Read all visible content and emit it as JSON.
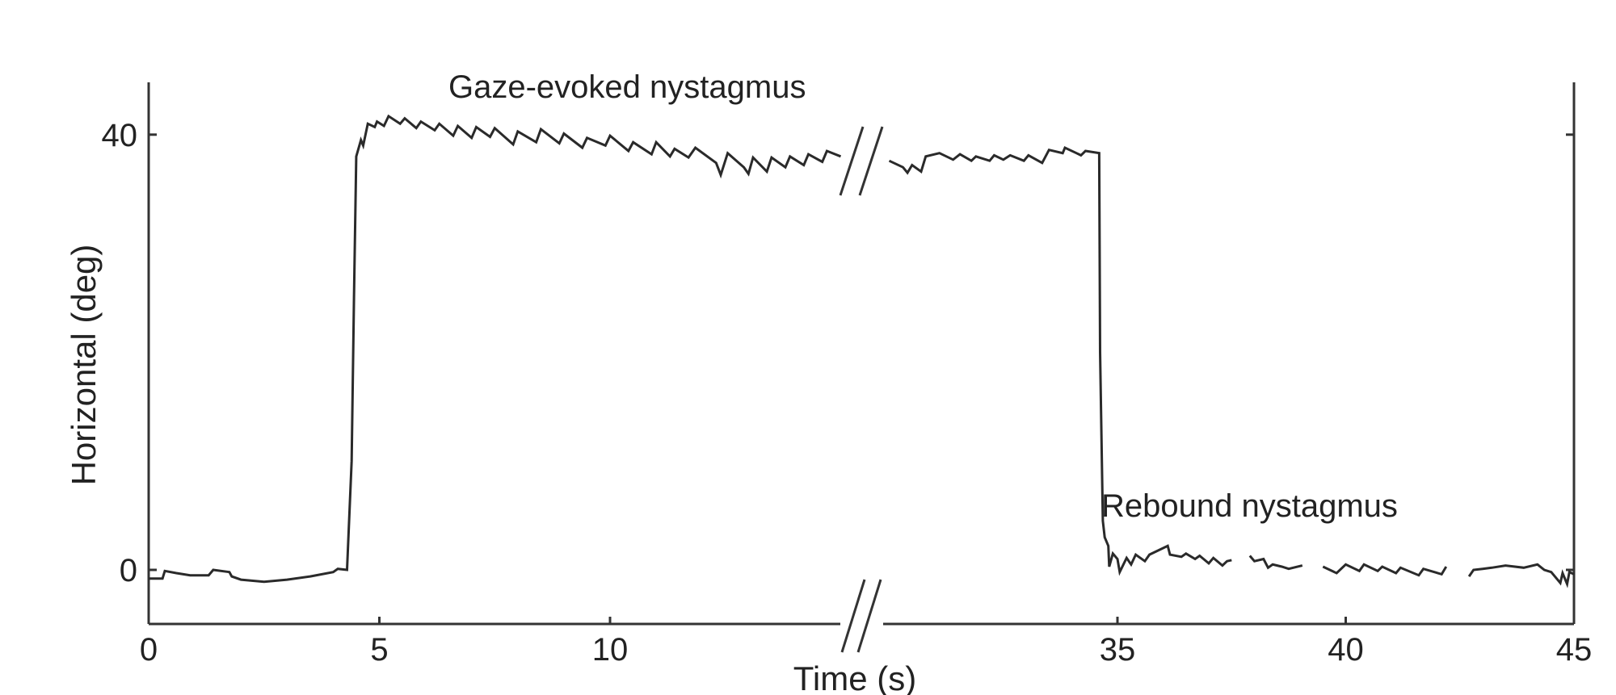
{
  "chart_data": {
    "type": "line",
    "title": "",
    "xlabel": "Time (s)",
    "ylabel": "Horizontal (deg)",
    "x_ticks": [
      "0",
      "5",
      "10",
      "35",
      "40",
      "45"
    ],
    "y_ticks": [
      "0",
      "40"
    ],
    "x_break": "axis break between 15 and 30 s",
    "xlim_segments": [
      [
        0,
        15
      ],
      [
        30,
        45
      ]
    ],
    "ylim": [
      -5,
      45
    ],
    "grid": false,
    "annotations": [
      "Gaze-evoked nystagmus",
      "Rebound nystagmus"
    ],
    "series": [
      {
        "segments": [
          [
            [
              0.0,
              -0.8
            ],
            [
              0.3,
              -0.8
            ],
            [
              0.35,
              -0.1
            ],
            [
              0.6,
              -0.3
            ],
            [
              0.9,
              -0.5
            ],
            [
              1.3,
              -0.5
            ],
            [
              1.4,
              0.0
            ],
            [
              1.75,
              -0.2
            ],
            [
              1.8,
              -0.6
            ],
            [
              2.0,
              -0.9
            ],
            [
              2.5,
              -1.1
            ],
            [
              3.0,
              -0.9
            ],
            [
              3.5,
              -0.6
            ],
            [
              4.0,
              -0.2
            ],
            [
              4.1,
              0.1
            ],
            [
              4.3,
              0.0
            ],
            [
              4.4,
              10.0
            ],
            [
              4.45,
              25.0
            ],
            [
              4.5,
              38.0
            ],
            [
              4.6,
              39.5
            ],
            [
              4.65,
              39.0
            ],
            [
              4.75,
              41.0
            ],
            [
              4.9,
              40.7
            ],
            [
              4.95,
              41.2
            ],
            [
              5.1,
              40.8
            ],
            [
              5.2,
              41.7
            ],
            [
              5.45,
              41.0
            ],
            [
              5.55,
              41.5
            ],
            [
              5.8,
              40.6
            ],
            [
              5.9,
              41.2
            ],
            [
              6.2,
              40.4
            ],
            [
              6.3,
              41.0
            ],
            [
              6.6,
              39.9
            ],
            [
              6.7,
              40.8
            ],
            [
              7.0,
              39.7
            ],
            [
              7.1,
              40.7
            ],
            [
              7.4,
              39.8
            ],
            [
              7.5,
              40.6
            ],
            [
              7.9,
              39.1
            ],
            [
              8.0,
              40.3
            ],
            [
              8.4,
              39.3
            ],
            [
              8.5,
              40.5
            ],
            [
              8.9,
              39.2
            ],
            [
              9.0,
              40.1
            ],
            [
              9.4,
              38.8
            ],
            [
              9.5,
              39.7
            ],
            [
              9.9,
              39.0
            ],
            [
              10.0,
              39.9
            ],
            [
              10.4,
              38.5
            ],
            [
              10.5,
              39.3
            ],
            [
              10.9,
              38.2
            ],
            [
              11.0,
              39.3
            ],
            [
              11.3,
              38.0
            ],
            [
              11.4,
              38.7
            ],
            [
              11.7,
              37.9
            ],
            [
              11.85,
              38.8
            ],
            [
              12.3,
              37.4
            ],
            [
              12.4,
              36.3
            ],
            [
              12.55,
              38.3
            ],
            [
              12.9,
              37.0
            ],
            [
              13.0,
              36.4
            ],
            [
              13.1,
              37.9
            ],
            [
              13.4,
              36.6
            ],
            [
              13.5,
              37.9
            ],
            [
              13.8,
              37.0
            ],
            [
              13.9,
              38.0
            ],
            [
              14.2,
              37.2
            ],
            [
              14.3,
              38.2
            ],
            [
              14.6,
              37.5
            ],
            [
              14.7,
              38.5
            ],
            [
              15.0,
              38.0
            ]
          ],
          [
            [
              30.0,
              37.6
            ],
            [
              30.3,
              37.0
            ],
            [
              30.4,
              36.5
            ],
            [
              30.5,
              37.2
            ],
            [
              30.7,
              36.6
            ],
            [
              30.8,
              38.0
            ],
            [
              31.1,
              38.3
            ],
            [
              31.4,
              37.7
            ],
            [
              31.55,
              38.2
            ],
            [
              31.8,
              37.6
            ],
            [
              31.9,
              38.0
            ],
            [
              32.2,
              37.6
            ],
            [
              32.3,
              38.1
            ],
            [
              32.5,
              37.7
            ],
            [
              32.65,
              38.1
            ],
            [
              32.95,
              37.6
            ],
            [
              33.05,
              38.1
            ],
            [
              33.35,
              37.4
            ],
            [
              33.5,
              38.6
            ],
            [
              33.8,
              38.3
            ],
            [
              33.85,
              38.8
            ],
            [
              34.1,
              38.3
            ],
            [
              34.2,
              38.1
            ],
            [
              34.3,
              38.5
            ],
            [
              34.6,
              38.3
            ],
            [
              34.62,
              20.0
            ],
            [
              34.68,
              4.5
            ],
            [
              34.72,
              3.0
            ],
            [
              34.8,
              2.2
            ],
            [
              34.82,
              0.3
            ],
            [
              34.9,
              1.5
            ],
            [
              35.0,
              1.0
            ],
            [
              35.05,
              -0.2
            ],
            [
              35.2,
              1.1
            ],
            [
              35.3,
              0.5
            ],
            [
              35.4,
              1.4
            ],
            [
              35.6,
              0.8
            ],
            [
              35.7,
              1.4
            ],
            [
              36.1,
              2.2
            ],
            [
              36.15,
              1.4
            ],
            [
              36.4,
              1.2
            ],
            [
              36.5,
              1.5
            ],
            [
              36.7,
              1.0
            ],
            [
              36.8,
              1.3
            ],
            [
              37.0,
              0.6
            ],
            [
              37.1,
              1.1
            ],
            [
              37.3,
              0.4
            ],
            [
              37.4,
              0.8
            ],
            [
              37.5,
              0.9
            ]
          ],
          [
            [
              37.9,
              1.3
            ],
            [
              38.0,
              0.8
            ],
            [
              38.2,
              1.0
            ],
            [
              38.3,
              0.2
            ],
            [
              38.4,
              0.5
            ],
            [
              38.6,
              0.3
            ],
            [
              38.75,
              0.1
            ],
            [
              39.05,
              0.4
            ]
          ],
          [
            [
              39.5,
              0.3
            ],
            [
              39.8,
              -0.3
            ],
            [
              40.0,
              0.5
            ],
            [
              40.3,
              -0.1
            ],
            [
              40.4,
              0.5
            ],
            [
              40.7,
              -0.1
            ],
            [
              40.8,
              0.3
            ],
            [
              41.1,
              -0.3
            ],
            [
              41.2,
              0.2
            ],
            [
              41.6,
              -0.5
            ],
            [
              41.7,
              0.1
            ],
            [
              42.1,
              -0.4
            ],
            [
              42.2,
              0.3
            ]
          ],
          [
            [
              42.7,
              -0.6
            ],
            [
              42.8,
              0.0
            ],
            [
              43.0,
              0.1
            ],
            [
              43.2,
              0.2
            ],
            [
              43.5,
              0.4
            ],
            [
              43.9,
              0.2
            ],
            [
              44.2,
              0.5
            ],
            [
              44.35,
              0.0
            ],
            [
              44.5,
              -0.2
            ],
            [
              44.7,
              -1.2
            ],
            [
              44.75,
              -0.3
            ],
            [
              44.85,
              -1.3
            ],
            [
              44.9,
              -0.2
            ],
            [
              45.0,
              -0.4
            ]
          ]
        ]
      }
    ]
  }
}
